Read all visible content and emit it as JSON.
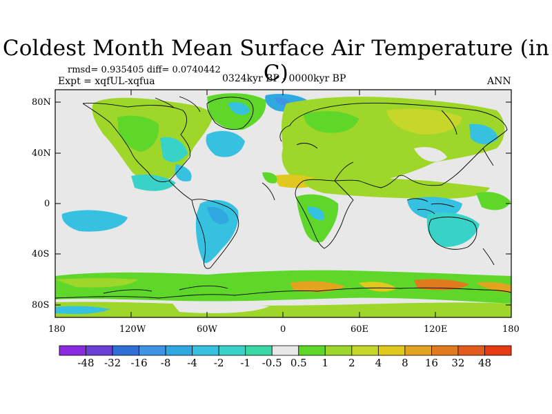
{
  "title": "Coldest Month Mean Surface Air Temperature (in C)",
  "stats": "rmsd= 0.935405 diff= 0.0740442",
  "experiment": "Expt = xqfUL-xqfua",
  "period": "0324kyr BP - 0000kyr BP",
  "season": "ANN",
  "axes": {
    "y_labels": [
      "80N",
      "40N",
      "0",
      "40S",
      "80S"
    ],
    "x_labels": [
      "180",
      "120W",
      "60W",
      "0",
      "60E",
      "120E",
      "180"
    ]
  },
  "colorbar": {
    "labels": [
      "-48",
      "-32",
      "-16",
      "-8",
      "-4",
      "-2",
      "-1",
      "-0.5",
      "0.5",
      "1",
      "2",
      "4",
      "8",
      "16",
      "32",
      "48"
    ],
    "colors": [
      "#8a2be2",
      "#6a3fd8",
      "#2f6fd6",
      "#3f93e3",
      "#2fa8df",
      "#36c1e0",
      "#38d3c8",
      "#3ad7a6",
      "#e8e8e8",
      "#5fd62a",
      "#9fd62a",
      "#c6d62a",
      "#e0c81e",
      "#e3a31e",
      "#e07a1e",
      "#e25a1e",
      "#e53a14"
    ]
  }
}
